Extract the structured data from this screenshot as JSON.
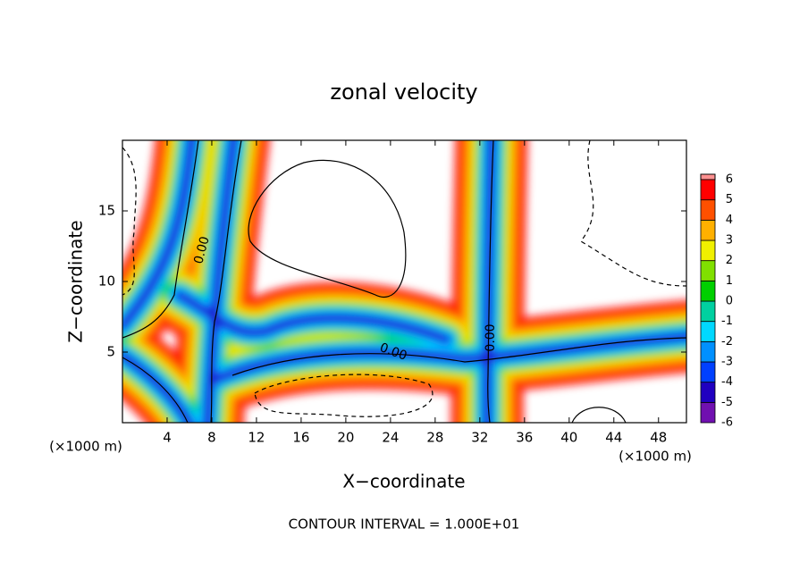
{
  "chart_data": {
    "type": "contour",
    "title": "zonal velocity",
    "xlabel": "X−coordinate",
    "ylabel": "Z−coordinate",
    "x_unit_label": "(×1000 m)",
    "y_unit_label": "(×1000 m)",
    "xlim": [
      0,
      50.5
    ],
    "ylim": [
      0,
      20
    ],
    "xticks": [
      4,
      8,
      12,
      16,
      20,
      24,
      28,
      32,
      36,
      40,
      44,
      48
    ],
    "yticks": [
      5,
      10,
      15
    ],
    "colorbar": {
      "levels": [
        -6,
        -5,
        -4,
        -3,
        -2,
        -1,
        0,
        1,
        2,
        3,
        4,
        5,
        6
      ],
      "colors": [
        "#7010b0",
        "#2000c0",
        "#0040ff",
        "#0090ff",
        "#00d8ff",
        "#00d0a0",
        "#00d000",
        "#80e000",
        "#f0f000",
        "#ffb000",
        "#ff5000",
        "#ff0000"
      ],
      "top_color": "#ff9090"
    },
    "contour_labels": [
      "0.00",
      "0.00",
      "0.00"
    ],
    "footer": "CONTOUR INTERVAL = 1.000E+01"
  }
}
